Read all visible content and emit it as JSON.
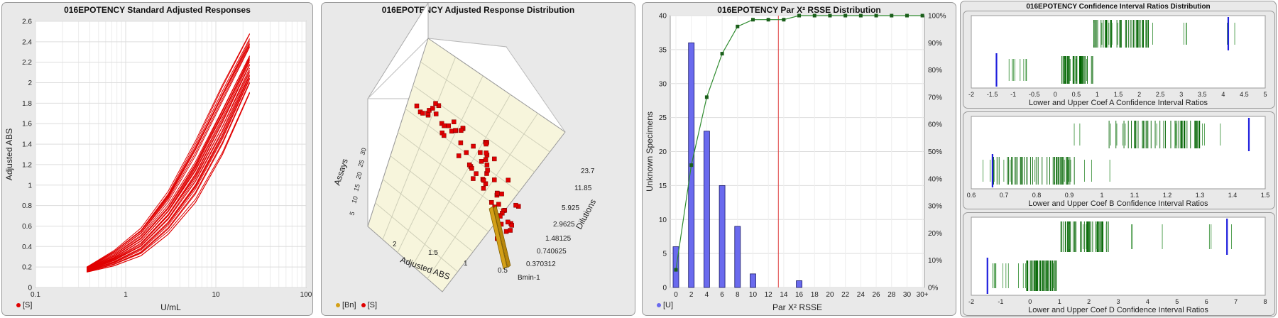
{
  "panels": {
    "p1": {
      "title": "016EPOTENCY Standard Adjusted Responses",
      "legend": [
        {
          "label": "[S]",
          "color": "#e00000"
        }
      ]
    },
    "p2": {
      "title": "016EPOTENCY Adjusted Response Distribution",
      "legend": [
        {
          "label": "[Bn]",
          "color": "#d4a017"
        },
        {
          "label": "[S]",
          "color": "#e00000"
        }
      ]
    },
    "p3": {
      "title": "016EPOTENCY Par X² RSSE Distribution",
      "legend": [
        {
          "label": "[U]",
          "color": "#6a6aee"
        }
      ]
    },
    "p4": {
      "title": "016EPOTENCY Confidence Interval Ratios Distribution"
    }
  },
  "colors": {
    "red": "#e00000",
    "green": "#006400",
    "blue": "#1f1fdd",
    "bar": "#6a6aee",
    "gold": "#d4a017"
  },
  "chart_data": [
    {
      "type": "line",
      "title": "016EPOTENCY Standard Adjusted Responses",
      "xlabel": "U/mL",
      "ylabel": "Adjusted ABS",
      "xscale": "log",
      "xlim": [
        0.1,
        100
      ],
      "ylim": [
        0,
        2.6
      ],
      "xticks": [
        "0.1",
        "1",
        "10",
        "100"
      ],
      "yticks": [
        "0",
        "0.2",
        "0.4",
        "0.6",
        "0.8",
        "1",
        "1.2",
        "1.4",
        "1.6",
        "1.8",
        "2",
        "2.2",
        "2.4",
        "2.6"
      ],
      "x": [
        0.37,
        0.74,
        1.48,
        2.96,
        5.93,
        11.85,
        23.7
      ],
      "series_count": 30,
      "y_low": [
        0.15,
        0.21,
        0.31,
        0.52,
        0.83,
        1.3,
        1.9
      ],
      "y_high": [
        0.2,
        0.36,
        0.58,
        0.94,
        1.43,
        1.98,
        2.48
      ],
      "legend": [
        "[S]"
      ]
    },
    {
      "type": "bar3d",
      "title": "016EPOTENCY Adjusted Response Distribution",
      "xlabel": "Adjusted ABS",
      "ylabel": "Dilutions",
      "zlabel": "Assays",
      "xticks": [
        "2",
        "1.5",
        "1",
        "0.5"
      ],
      "yticks": [
        "Bmin-1",
        "0.370312",
        "0.740625",
        "1.48125",
        "2.9625",
        "5.925",
        "11.85",
        "23.7"
      ],
      "zticks": [
        "5",
        "10",
        "15",
        "20",
        "25",
        "30"
      ],
      "legend": [
        "[Bn]",
        "[S]"
      ]
    },
    {
      "type": "bar",
      "title": "016EPOTENCY Par X² RSSE Distribution",
      "xlabel": "Par X² RSSE",
      "ylabel": "Unknown Specimens",
      "categories": [
        "0",
        "2",
        "4",
        "6",
        "8",
        "10",
        "12",
        "14",
        "16",
        "18",
        "20",
        "22",
        "24",
        "26",
        "28",
        "30",
        "30+"
      ],
      "values": [
        6,
        36,
        23,
        15,
        9,
        2,
        0,
        0,
        1,
        0,
        0,
        0,
        0,
        0,
        0,
        0,
        0
      ],
      "cumulative_percent": [
        6.5,
        45,
        70,
        86,
        96,
        98.5,
        98.5,
        98.5,
        100,
        100,
        100,
        100,
        100,
        100,
        100,
        100,
        100
      ],
      "ylim": [
        0,
        40
      ],
      "yticks": [
        "0",
        "5",
        "10",
        "15",
        "20",
        "25",
        "30",
        "35",
        "40"
      ],
      "y2ticks": [
        "0%",
        "10%",
        "20%",
        "30%",
        "40%",
        "50%",
        "60%",
        "70%",
        "80%",
        "90%",
        "100%"
      ],
      "reference_line_x": 13.3,
      "legend": [
        "[U]"
      ]
    },
    {
      "type": "scatter",
      "title": "Lower and Upper Coef A Confidence Interval Ratios",
      "xlabel": "Lower and Upper Coef A Confidence Interval Ratios",
      "xlim": [
        -2,
        5
      ],
      "xticks": [
        "-2",
        "-1.5",
        "-1",
        "-0.5",
        "0",
        "0.5",
        "1",
        "1.5",
        "2",
        "2.5",
        "3",
        "3.5",
        "4",
        "4.5",
        "5"
      ],
      "lower": {
        "range": [
          -1.45,
          0.9
        ],
        "dense_range": [
          0.15,
          0.9
        ],
        "mean": -1.4
      },
      "upper": {
        "range": [
          0.88,
          4.55
        ],
        "dense_range": [
          0.9,
          2.3
        ],
        "mean": 4.12
      }
    },
    {
      "type": "scatter",
      "title": "Lower and Upper Coef B Confidence Interval Ratios",
      "xlabel": "Lower and Upper Coef B Confidence Interval Ratios",
      "xlim": [
        0.6,
        1.5
      ],
      "xticks": [
        "0.6",
        "0.7",
        "0.8",
        "0.9",
        "1",
        "1.1",
        "1.2",
        "1.3",
        "1.4",
        "1.5"
      ],
      "lower": {
        "range": [
          0.61,
          1.05
        ],
        "dense_range": [
          0.66,
          0.92
        ],
        "mean": 0.665
      },
      "upper": {
        "range": [
          0.88,
          1.46
        ],
        "dense_range": [
          1.02,
          1.3
        ],
        "mean": 1.45
      }
    },
    {
      "type": "scatter",
      "title": "Lower and Upper Coef D Confidence Interval Ratios",
      "xlabel": "Lower and Upper Coef D Confidence Interval Ratios",
      "xlim": [
        -2,
        8
      ],
      "xticks": [
        "-2",
        "-1",
        "0",
        "1",
        "2",
        "3",
        "4",
        "5",
        "6",
        "7",
        "8"
      ],
      "lower": {
        "range": [
          -1.5,
          1.0
        ],
        "dense_range": [
          -0.2,
          0.9
        ],
        "mean": -1.45
      },
      "upper": {
        "range": [
          0.9,
          7.3
        ],
        "dense_range": [
          1.0,
          2.7
        ],
        "mean": 6.7
      }
    }
  ]
}
